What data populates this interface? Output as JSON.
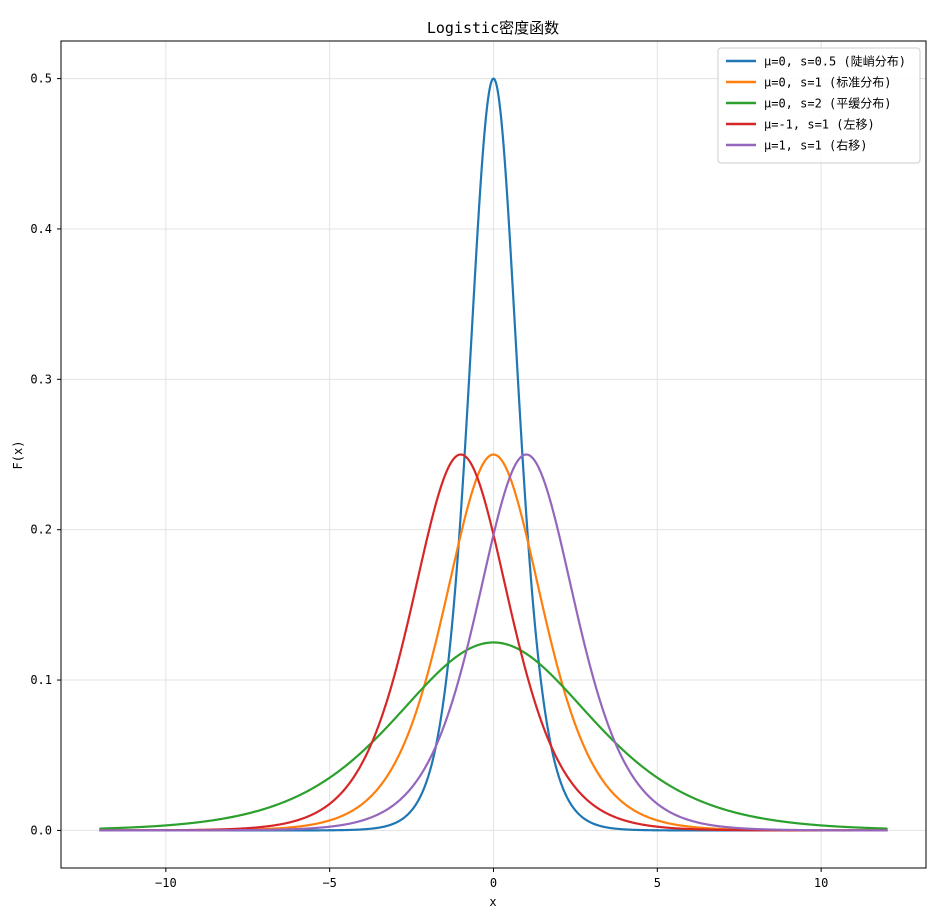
{
  "chart_data": {
    "type": "line",
    "title": "Logistic密度函数",
    "xlabel": "x",
    "ylabel": "F(x)",
    "xlim": [
      -13.2,
      13.2
    ],
    "ylim": [
      -0.025,
      0.525
    ],
    "x_ticks": [
      -10,
      -5,
      0,
      5,
      10
    ],
    "y_ticks": [
      0.0,
      0.1,
      0.2,
      0.3,
      0.4,
      0.5
    ],
    "x_tick_labels": [
      "−10",
      "−5",
      "0",
      "5",
      "10"
    ],
    "y_tick_labels": [
      "0.0",
      "0.1",
      "0.2",
      "0.3",
      "0.4",
      "0.5"
    ],
    "grid": true,
    "legend_position": "top-right",
    "x_range": [
      -12,
      12
    ],
    "series": [
      {
        "name": "μ=0, s=0.5 (陡峭分布)",
        "mu": 0,
        "s": 0.5,
        "color": "#1f77b4"
      },
      {
        "name": "μ=0, s=1 (标准分布)",
        "mu": 0,
        "s": 1,
        "color": "#ff7f0e"
      },
      {
        "name": "μ=0, s=2 (平缓分布)",
        "mu": 0,
        "s": 2,
        "color": "#2ca02c"
      },
      {
        "name": "μ=-1, s=1 (左移)",
        "mu": -1,
        "s": 1,
        "color": "#d62728"
      },
      {
        "name": "μ=1, s=1 (右移)",
        "mu": 1,
        "s": 1,
        "color": "#9467bd"
      }
    ]
  }
}
